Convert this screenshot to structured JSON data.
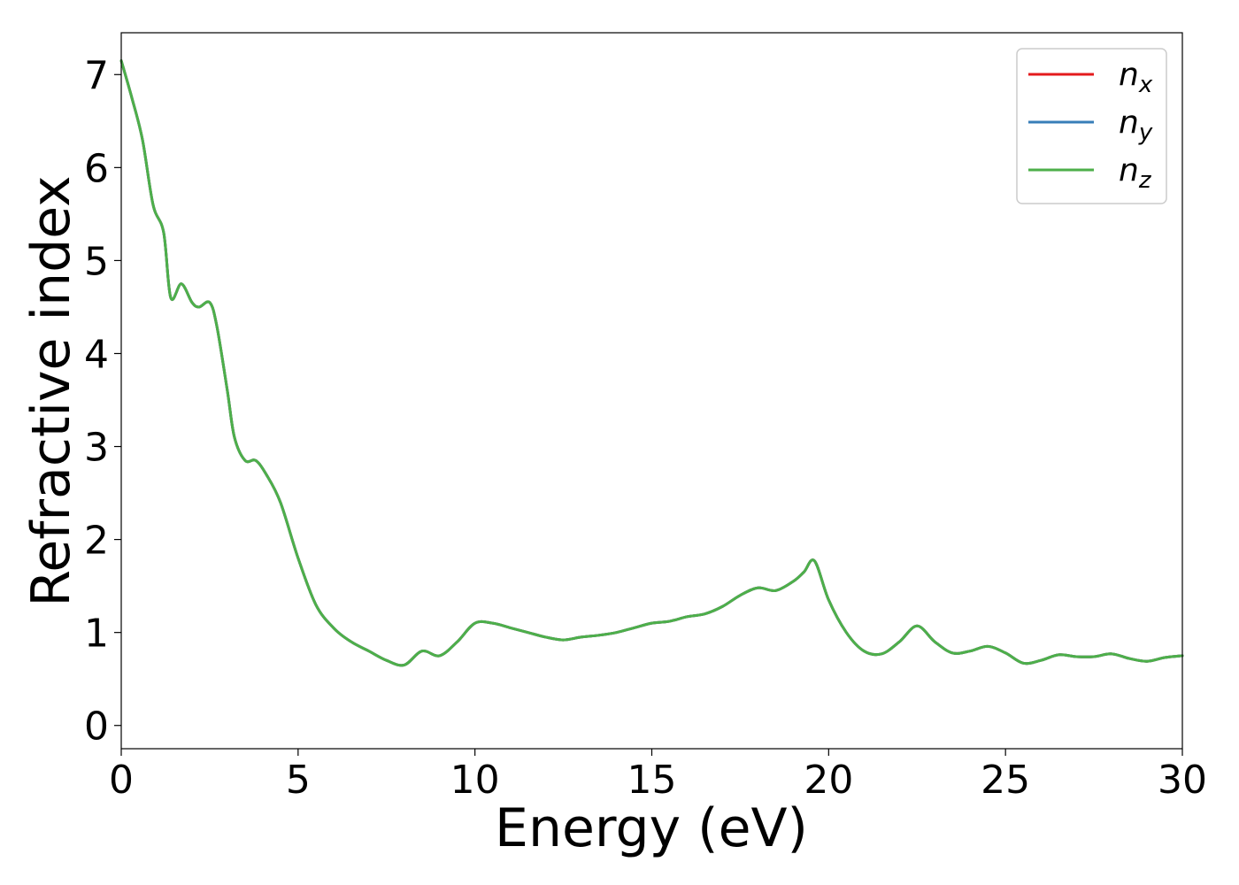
{
  "chart_data": {
    "type": "line",
    "title": "",
    "xlabel": "Energy (eV)",
    "ylabel": "Refractive index",
    "xlim": [
      0,
      30
    ],
    "ylim": [
      -0.25,
      7.45
    ],
    "xticks": [
      0,
      5,
      10,
      15,
      20,
      25,
      30
    ],
    "yticks": [
      0,
      1,
      2,
      3,
      4,
      5,
      6,
      7
    ],
    "xtick_labels": [
      "0",
      "5",
      "10",
      "15",
      "20",
      "25",
      "30"
    ],
    "ytick_labels": [
      "0",
      "1",
      "2",
      "3",
      "4",
      "5",
      "6",
      "7"
    ],
    "grid": false,
    "legend_position": "top-right",
    "x": [
      0,
      0.3,
      0.6,
      0.9,
      1.2,
      1.4,
      1.7,
      2.0,
      2.2,
      2.5,
      2.7,
      3.0,
      3.2,
      3.5,
      3.8,
      4.1,
      4.5,
      5.0,
      5.5,
      6.0,
      6.5,
      7.0,
      7.5,
      8.0,
      8.5,
      9.0,
      9.5,
      10.0,
      10.5,
      11.0,
      11.5,
      12.0,
      12.5,
      13.0,
      13.5,
      14.0,
      14.5,
      15.0,
      15.5,
      16.0,
      16.5,
      17.0,
      17.5,
      18.0,
      18.5,
      19.0,
      19.3,
      19.6,
      20.0,
      20.5,
      21.0,
      21.5,
      22.0,
      22.5,
      23.0,
      23.5,
      24.0,
      24.5,
      25.0,
      25.5,
      26.0,
      26.5,
      27.0,
      27.5,
      28.0,
      28.5,
      29.0,
      29.5,
      30.0
    ],
    "series": [
      {
        "name": "x",
        "color": "#e41a1c",
        "values": [
          7.15,
          6.75,
          6.3,
          5.6,
          5.3,
          4.6,
          4.75,
          4.55,
          4.5,
          4.55,
          4.3,
          3.6,
          3.1,
          2.85,
          2.85,
          2.7,
          2.4,
          1.8,
          1.3,
          1.05,
          0.9,
          0.8,
          0.7,
          0.65,
          0.8,
          0.75,
          0.9,
          1.1,
          1.1,
          1.05,
          1.0,
          0.95,
          0.92,
          0.95,
          0.97,
          1.0,
          1.05,
          1.1,
          1.12,
          1.17,
          1.2,
          1.28,
          1.4,
          1.48,
          1.45,
          1.55,
          1.65,
          1.77,
          1.35,
          1.0,
          0.8,
          0.77,
          0.9,
          1.07,
          0.9,
          0.78,
          0.8,
          0.85,
          0.78,
          0.67,
          0.7,
          0.76,
          0.74,
          0.74,
          0.77,
          0.72,
          0.69,
          0.73,
          0.75
        ]
      },
      {
        "name": "y",
        "color": "#377eb8",
        "values": [
          7.15,
          6.75,
          6.3,
          5.6,
          5.3,
          4.6,
          4.75,
          4.55,
          4.5,
          4.55,
          4.3,
          3.6,
          3.1,
          2.85,
          2.85,
          2.7,
          2.4,
          1.8,
          1.3,
          1.05,
          0.9,
          0.8,
          0.7,
          0.65,
          0.8,
          0.75,
          0.9,
          1.1,
          1.1,
          1.05,
          1.0,
          0.95,
          0.92,
          0.95,
          0.97,
          1.0,
          1.05,
          1.1,
          1.12,
          1.17,
          1.2,
          1.28,
          1.4,
          1.48,
          1.45,
          1.55,
          1.65,
          1.77,
          1.35,
          1.0,
          0.8,
          0.77,
          0.9,
          1.07,
          0.9,
          0.78,
          0.8,
          0.85,
          0.78,
          0.67,
          0.7,
          0.76,
          0.74,
          0.74,
          0.77,
          0.72,
          0.69,
          0.73,
          0.75
        ]
      },
      {
        "name": "z",
        "color": "#4daf4a",
        "values": [
          7.15,
          6.75,
          6.3,
          5.6,
          5.3,
          4.6,
          4.75,
          4.55,
          4.5,
          4.55,
          4.3,
          3.6,
          3.1,
          2.85,
          2.85,
          2.7,
          2.4,
          1.8,
          1.3,
          1.05,
          0.9,
          0.8,
          0.7,
          0.65,
          0.8,
          0.75,
          0.9,
          1.1,
          1.1,
          1.05,
          1.0,
          0.95,
          0.92,
          0.95,
          0.97,
          1.0,
          1.05,
          1.1,
          1.12,
          1.17,
          1.2,
          1.28,
          1.4,
          1.48,
          1.45,
          1.55,
          1.65,
          1.77,
          1.35,
          1.0,
          0.8,
          0.77,
          0.9,
          1.07,
          0.9,
          0.78,
          0.8,
          0.85,
          0.78,
          0.67,
          0.7,
          0.76,
          0.74,
          0.74,
          0.77,
          0.72,
          0.69,
          0.73,
          0.75
        ]
      }
    ],
    "legend": {
      "base": "n",
      "entries": [
        "x",
        "y",
        "z"
      ]
    }
  }
}
